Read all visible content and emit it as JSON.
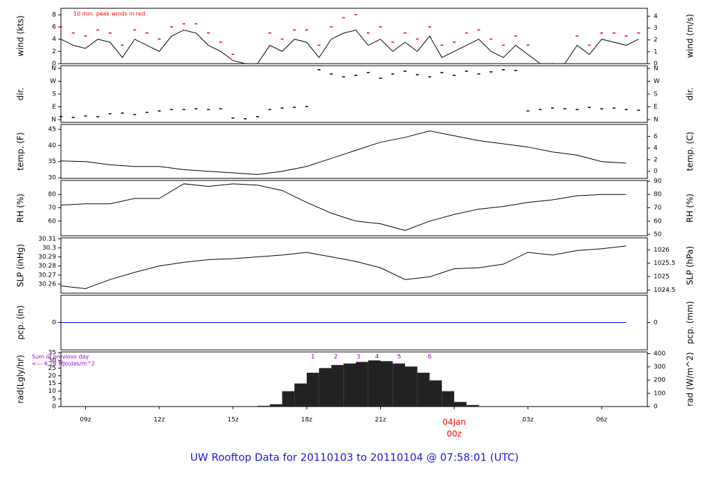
{
  "title": "UW Rooftop Data for 20110103  to  20110104 @ 07:58:01  (UTC)",
  "chart_data": [
    {
      "type": "line",
      "ylabel": "wind (kts)",
      "y2label": "wind (m/s)",
      "annotation": "10 min. peak winds in red",
      "xlim": [
        8,
        31.86
      ],
      "ylim": [
        0,
        9.07
      ],
      "yticks": [
        0,
        2,
        4,
        6,
        8
      ],
      "y2lim": [
        0,
        4.666
      ],
      "y2ticks": [
        0,
        1,
        2,
        3,
        4
      ],
      "x": [
        8,
        8.5,
        9,
        9.5,
        10,
        10.5,
        11,
        11.5,
        12,
        12.5,
        13,
        13.5,
        14,
        14.5,
        15,
        15.5,
        16,
        16.5,
        17,
        17.5,
        18,
        18.5,
        19,
        19.5,
        20,
        20.5,
        21,
        21.5,
        22,
        22.5,
        23,
        23.5,
        24,
        24.5,
        25,
        25.5,
        26,
        26.5,
        27,
        27.5,
        28,
        28.5,
        29,
        29.5,
        30,
        30.5,
        31,
        31.5
      ],
      "series": [
        {
          "type": "line",
          "color": "#000000",
          "values": [
            4,
            3,
            2.5,
            4,
            3.5,
            1,
            4,
            3,
            2,
            4.5,
            5.5,
            5,
            3,
            2,
            0.5,
            0,
            0,
            3,
            2,
            4,
            3.5,
            1,
            4,
            5,
            5.5,
            3,
            4,
            2,
            3.5,
            2,
            4.5,
            1,
            2,
            3,
            4,
            2,
            1,
            3,
            1.5,
            0,
            0,
            0,
            3,
            1.5,
            4,
            3.5,
            3,
            4
          ]
        },
        {
          "type": "points",
          "color": "#ff0000",
          "values": [
            6,
            5,
            4.5,
            5.5,
            5,
            3,
            5.5,
            5,
            4,
            6,
            6.5,
            6.5,
            5,
            3.5,
            1.5,
            0,
            0,
            5,
            4,
            5.5,
            5.5,
            3,
            6,
            7.5,
            8,
            5,
            6,
            3.5,
            5,
            4,
            6,
            3,
            3.5,
            5,
            5.5,
            4,
            3,
            4.5,
            3,
            0,
            0,
            0,
            4.5,
            3,
            5,
            5,
            4.5,
            5
          ]
        }
      ]
    },
    {
      "type": "scatter",
      "ylabel": "dir.",
      "y2label": "dir.",
      "xlim": [
        8,
        31.86
      ],
      "ylim": [
        -19.5,
        379.5
      ],
      "yticks": [
        {
          "value": 0,
          "label": "N"
        },
        {
          "value": 90,
          "label": "E"
        },
        {
          "value": 180,
          "label": "S"
        },
        {
          "value": 270,
          "label": "W"
        },
        {
          "value": 360,
          "label": "N"
        }
      ],
      "y2lim": [
        -19.5,
        379.5
      ],
      "y2ticks": [
        {
          "value": 0,
          "label": "N"
        },
        {
          "value": 90,
          "label": "E"
        },
        {
          "value": 180,
          "label": "S"
        },
        {
          "value": 270,
          "label": "W"
        },
        {
          "value": 360,
          "label": "N"
        }
      ],
      "x": [
        8,
        8.5,
        9,
        9.5,
        10,
        10.5,
        11,
        11.5,
        12,
        12.5,
        13,
        13.5,
        14,
        14.5,
        15,
        15.5,
        16,
        16.5,
        17,
        17.5,
        18,
        18.5,
        19,
        19.5,
        20,
        20.5,
        21,
        21.5,
        22,
        22.5,
        23,
        23.5,
        24,
        24.5,
        25,
        25.5,
        26,
        26.5,
        27,
        27.5,
        28,
        28.5,
        29,
        29.5,
        30,
        30.5,
        31,
        31.5
      ],
      "series": [
        {
          "type": "points",
          "color": "#000000",
          "values": [
            20,
            15,
            25,
            20,
            40,
            45,
            35,
            50,
            60,
            70,
            70,
            75,
            70,
            75,
            10,
            5,
            20,
            70,
            80,
            85,
            90,
            350,
            320,
            300,
            310,
            330,
            290,
            320,
            340,
            315,
            300,
            330,
            310,
            340,
            320,
            335,
            350,
            345,
            60,
            70,
            80,
            75,
            70,
            85,
            75,
            80,
            70,
            65
          ]
        }
      ]
    },
    {
      "type": "line",
      "ylabel": "temp. (F)",
      "y2label": "temp. (C)",
      "xlim": [
        8,
        31.86
      ],
      "ylim": [
        29.8,
        46.5
      ],
      "yticks": [
        30,
        35,
        40,
        45
      ],
      "y2lim": [
        -1.22,
        8.06
      ],
      "y2ticks": [
        0,
        2,
        4,
        6
      ],
      "x": [
        8,
        9,
        10,
        11,
        12,
        13,
        14,
        15,
        16,
        17,
        18,
        19,
        20,
        21,
        22,
        23,
        24,
        25,
        26,
        27,
        28,
        29,
        30,
        31
      ],
      "series": [
        {
          "type": "line",
          "color": "#000000",
          "values": [
            35.2,
            35,
            34,
            33.5,
            33.5,
            32.5,
            32,
            31.5,
            31,
            32,
            33.5,
            36,
            38.5,
            41,
            42.5,
            44.5,
            43,
            41.5,
            40.5,
            39.5,
            38,
            37,
            35,
            34.5
          ]
        }
      ]
    },
    {
      "type": "line",
      "ylabel": "RH (%)",
      "y2label": "RH (%)",
      "xlim": [
        8,
        31.86
      ],
      "ylim": [
        49,
        90.5
      ],
      "yticks": [
        60,
        70,
        80
      ],
      "y2lim": [
        49,
        90.5
      ],
      "y2ticks": [
        50,
        60,
        70,
        80,
        90
      ],
      "x": [
        8,
        9,
        10,
        11,
        12,
        13,
        14,
        15,
        16,
        17,
        18,
        19,
        20,
        21,
        22,
        23,
        24,
        25,
        26,
        27,
        28,
        29,
        30,
        31
      ],
      "series": [
        {
          "type": "line",
          "color": "#000000",
          "values": [
            72,
            73,
            73,
            77,
            77,
            88,
            86,
            88,
            87,
            83,
            74,
            66,
            60,
            58,
            53,
            60,
            65,
            69,
            71,
            74,
            76,
            79,
            80,
            80
          ]
        }
      ]
    },
    {
      "type": "line",
      "ylabel": "SLP (inHg)",
      "y2label": "SLP (hPa)",
      "xlim": [
        8,
        31.86
      ],
      "ylim": [
        30.25,
        30.311
      ],
      "yticks": [
        30.26,
        30.27,
        30.28,
        30.29,
        30.3,
        30.31
      ],
      "y2lim": [
        1024.38,
        1026.45
      ],
      "y2ticks": [
        1024.5,
        1025,
        1025.5,
        1026
      ],
      "x": [
        8,
        9,
        10,
        11,
        12,
        13,
        14,
        15,
        16,
        17,
        18,
        19,
        20,
        21,
        22,
        23,
        24,
        25,
        26,
        27,
        28,
        29,
        30,
        31
      ],
      "series": [
        {
          "type": "line",
          "color": "#000000",
          "values": [
            30.258,
            30.255,
            30.265,
            30.273,
            30.28,
            30.284,
            30.287,
            30.288,
            30.29,
            30.292,
            30.295,
            30.29,
            30.285,
            30.278,
            30.265,
            30.268,
            30.277,
            30.278,
            30.282,
            30.295,
            30.292,
            30.297,
            30.299,
            30.302
          ]
        }
      ]
    },
    {
      "type": "line",
      "ylabel": "pcp. (in)",
      "y2label": "pcp. (mm)",
      "xlim": [
        8,
        31.86
      ],
      "ylim": [
        -1,
        1
      ],
      "yticks": [
        0
      ],
      "y2lim": [
        -1,
        1
      ],
      "y2ticks": [
        0
      ],
      "x": [
        8,
        9,
        10,
        11,
        12,
        13,
        14,
        15,
        16,
        17,
        18,
        19,
        20,
        21,
        22,
        23,
        24,
        25,
        26,
        27,
        28,
        29,
        30,
        31
      ],
      "series": [
        {
          "type": "line",
          "color": "#0000cc",
          "values": [
            0,
            0,
            0,
            0,
            0,
            0,
            0,
            0,
            0,
            0,
            0,
            0,
            0,
            0,
            0,
            0,
            0,
            0,
            0,
            0,
            0,
            0,
            0,
            0
          ]
        }
      ]
    },
    {
      "type": "bar",
      "ylabel": "rad(Lgly/hr)",
      "y2label": "rad (W/m^2)",
      "annotations": [
        "Sum of previous day",
        "<--- 6.28 MJoules/m^2"
      ],
      "hour_markers": {
        "labels": [
          "1",
          "2",
          "3",
          "4",
          "5",
          "6"
        ],
        "x": [
          18.25,
          19.18,
          20.1,
          20.86,
          21.76,
          23.0
        ],
        "color": "#9900cc"
      },
      "xlim": [
        8,
        31.86
      ],
      "ylim": [
        0,
        35.5
      ],
      "yticks": [
        0,
        5,
        10,
        15,
        20,
        25,
        30,
        35
      ],
      "y2lim": [
        0,
        413
      ],
      "y2ticks": [
        0,
        100,
        200,
        300,
        400
      ],
      "xticks": [
        {
          "value": 9,
          "label": "09z"
        },
        {
          "value": 12,
          "label": "12z"
        },
        {
          "value": 15,
          "label": "15z"
        },
        {
          "value": 18,
          "label": "18z"
        },
        {
          "value": 21,
          "label": "21z"
        },
        {
          "value": 24,
          "label": "00z"
        },
        {
          "value": 27,
          "label": "03z"
        },
        {
          "value": 30,
          "label": "06z"
        }
      ],
      "x_date_label": {
        "value": 24,
        "label": "04Jan",
        "color": "#ff0000"
      },
      "x": [
        15.5,
        16,
        16.5,
        17,
        17.5,
        18,
        18.5,
        19,
        19.5,
        20,
        20.5,
        21,
        21.5,
        22,
        22.5,
        23,
        23.5,
        24,
        24.5,
        25
      ],
      "series": [
        {
          "type": "bar",
          "color": "#222222",
          "values": [
            0,
            0.5,
            1.5,
            10,
            15,
            22,
            25,
            27,
            28,
            29,
            30,
            29.5,
            28,
            26,
            22,
            17,
            10,
            3,
            1,
            0
          ]
        }
      ]
    }
  ]
}
